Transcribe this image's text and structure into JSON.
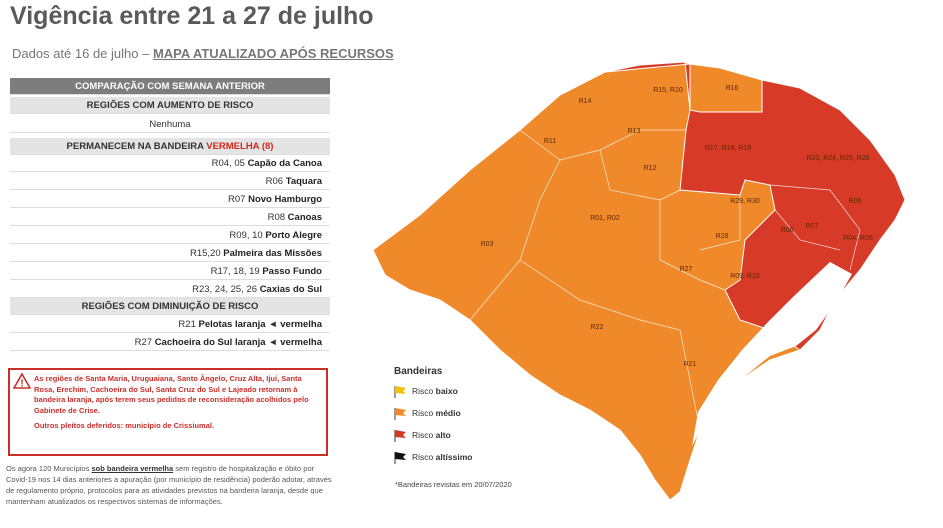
{
  "header": {
    "title": "Vigência entre 21 a 27 de julho",
    "subtitle": "Dados até 16 de julho –",
    "subtitle_link": "MAPA ATUALIZADO APÓS RECURSOS"
  },
  "table": {
    "heading": "COMPARAÇÃO COM SEMANA ANTERIOR",
    "increase_title": "REGIÕES COM AUMENTO DE RISCO",
    "increase_value": "Nenhuma",
    "remain_title": "PERMANECEM NA BANDEIRA",
    "remain_flag": "VERMELHA (8)",
    "remain_rows": [
      {
        "code": "R04, 05",
        "city": "Capão da Canoa"
      },
      {
        "code": "R06",
        "city": "Taquara"
      },
      {
        "code": "R07",
        "city": "Novo Hamburgo"
      },
      {
        "code": "R08",
        "city": "Canoas"
      },
      {
        "code": "R09, 10",
        "city": "Porto Alegre"
      },
      {
        "code": "R15,20",
        "city": "Palmeira das Missões"
      },
      {
        "code": "R17, 18, 19",
        "city": "Passo Fundo"
      },
      {
        "code": "R23, 24, 25, 26",
        "city": "Caxias do Sul"
      }
    ],
    "decrease_title": "REGIÕES COM DIMINUIÇÃO DE RISCO",
    "decrease_rows": [
      {
        "code": "R21",
        "city": "Pelotas",
        "from": "laranja",
        "arrow": "◄",
        "to": "vermelha"
      },
      {
        "code": "R27",
        "city": "Cachoeira do Sul",
        "from": "laranja",
        "arrow": "◄",
        "to": "vermelha"
      }
    ]
  },
  "warning": {
    "icon": "!",
    "text": "As regiões de Santa Maria, Uruguaiana, Santo Ângelo, Cruz Alta, Ijuí, Santa Rosa, Erechim, Cachoeira do Sul, Santa Cruz do Sul e Lajeado retornam à bandeira laranja, após terem seus pedidos de reconsideração acolhidos pelo Gabinete de Crise.",
    "extra": "Outros pleitos deferidos: município de Crissiumal."
  },
  "footnote": {
    "before": "Os agora 120 Municípios",
    "emphasis": "sob bandeira vermelha",
    "after": "sem registro de hospitalização e óbito por Covid-19 nos 14 dias anteriores a apuração (por município de residência) poderão adotar, através de regulamento próprio, protocolos para as atividades previstos na bandeira laranja, desde que mantenham atualizados os respectivos sistemas de informações."
  },
  "map": {
    "regions": [
      "R14",
      "R15, R20",
      "R16",
      "R13",
      "R11",
      "R12",
      "R17, R18, R19",
      "R23, R24, R25, R26",
      "R29, R30",
      "R06",
      "R01, R02",
      "R28",
      "R08",
      "R07",
      "R04, R05",
      "R03",
      "R27",
      "R09, R10",
      "R22",
      "R21"
    ],
    "legend_title": "Bandeiras",
    "legend": [
      {
        "prefix": "Risco",
        "level": "baixo",
        "color": "#f2c200"
      },
      {
        "prefix": "Risco",
        "level": "médio",
        "color": "#f08a24"
      },
      {
        "prefix": "Risco",
        "level": "alto",
        "color": "#d33a26"
      },
      {
        "prefix": "Risco",
        "level": "altíssimo",
        "color": "#111111"
      }
    ],
    "note": "*Bandeiras revistas em 20/07/2020",
    "orange": "#f0892a",
    "red": "#d83a28"
  }
}
